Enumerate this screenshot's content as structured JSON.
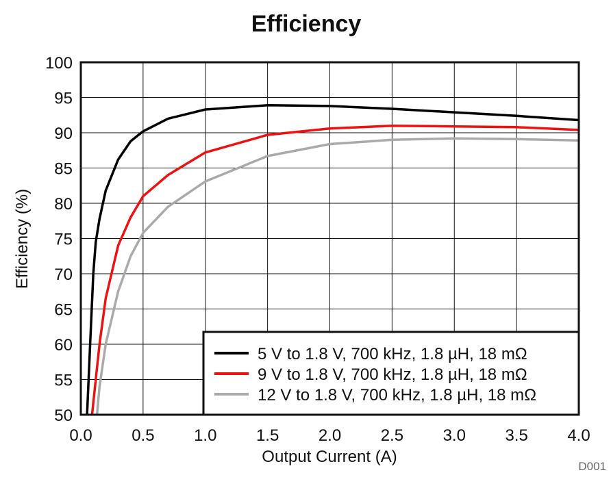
{
  "chart_data": {
    "type": "line",
    "title": "Efficiency",
    "xlabel": "Output Current (A)",
    "ylabel": "Efficiency (%)",
    "xlim": [
      0,
      4
    ],
    "ylim": [
      50,
      100
    ],
    "grid": true,
    "legend_position": "bottom-right",
    "x_ticks": [
      "0.0",
      "0.5",
      "1.0",
      "1.5",
      "2.0",
      "2.5",
      "3.0",
      "3.5",
      "4.0"
    ],
    "y_ticks": [
      "50",
      "55",
      "60",
      "65",
      "70",
      "75",
      "80",
      "85",
      "90",
      "95",
      "100"
    ],
    "figure_id": "D001",
    "series": [
      {
        "name": "5 V to 1.8 V, 700 kHz, 1.8 µH, 18 mΩ",
        "color": "#000000",
        "x": [
          0.05,
          0.08,
          0.1,
          0.12,
          0.15,
          0.2,
          0.3,
          0.4,
          0.5,
          0.7,
          1.0,
          1.5,
          2.0,
          2.5,
          3.0,
          3.5,
          4.0
        ],
        "y": [
          50,
          62,
          70,
          74.5,
          77.8,
          81.8,
          86.2,
          88.8,
          90.2,
          92.0,
          93.3,
          93.9,
          93.8,
          93.4,
          92.9,
          92.4,
          91.8
        ]
      },
      {
        "name": "9 V to 1.8 V, 700 kHz, 1.8 µH, 18 mΩ",
        "color": "#ee1111",
        "x": [
          0.09,
          0.12,
          0.15,
          0.2,
          0.3,
          0.4,
          0.5,
          0.7,
          1.0,
          1.5,
          2.0,
          2.5,
          3.0,
          3.5,
          4.0
        ],
        "y": [
          50,
          55,
          60,
          66.5,
          74,
          78,
          81,
          84,
          87.2,
          89.7,
          90.6,
          91.0,
          90.9,
          90.8,
          90.4
        ]
      },
      {
        "name": "12 V to 1.8 V, 700 kHz, 1.8 µH, 18 mΩ",
        "color": "#aaaaaa",
        "x": [
          0.13,
          0.15,
          0.2,
          0.3,
          0.4,
          0.5,
          0.7,
          1.0,
          1.5,
          2.0,
          2.5,
          3.0,
          3.5,
          4.0
        ],
        "y": [
          50,
          54,
          60,
          67.5,
          72.5,
          75.8,
          79.5,
          83.1,
          86.7,
          88.4,
          89.0,
          89.2,
          89.1,
          88.9
        ]
      }
    ]
  }
}
